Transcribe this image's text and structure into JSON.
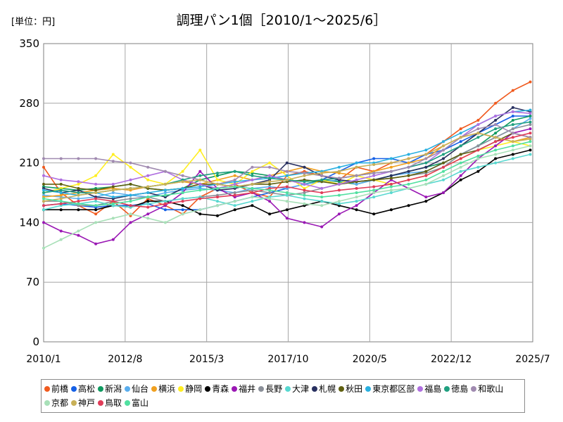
{
  "unit_label": "[単位：円]",
  "chart_data": {
    "type": "line",
    "title": "調理パン1個［2010/1～2025/6］",
    "xlabel": "",
    "ylabel": "",
    "ylim": [
      0,
      350
    ],
    "yticks": [
      "0",
      "70",
      "140",
      "210",
      "280",
      "350"
    ],
    "xticks": [
      "2010/1",
      "2012/8",
      "2015/3",
      "2017/10",
      "2020/5",
      "2022/12",
      "2025/7"
    ],
    "grid": true,
    "legend_position": "bottom",
    "series": [
      {
        "name": "前橋",
        "color": "#f05a1e",
        "values": [
          205,
          175,
          160,
          150,
          165,
          148,
          168,
          160,
          150,
          170,
          180,
          185,
          175,
          170,
          195,
          200,
          195,
          190,
          205,
          200,
          210,
          215,
          220,
          235,
          250,
          260,
          280,
          295,
          305
        ]
      },
      {
        "name": "高松",
        "color": "#1560e6",
        "values": [
          160,
          162,
          160,
          158,
          160,
          160,
          162,
          155,
          155,
          155,
          160,
          165,
          170,
          175,
          180,
          185,
          190,
          200,
          210,
          215,
          215,
          210,
          220,
          225,
          235,
          245,
          255,
          265,
          265
        ]
      },
      {
        "name": "新潟",
        "color": "#0f9a60",
        "values": [
          182,
          180,
          178,
          180,
          182,
          185,
          180,
          178,
          180,
          190,
          195,
          200,
          198,
          195,
          190,
          185,
          190,
          188,
          185,
          190,
          195,
          200,
          205,
          210,
          220,
          230,
          245,
          260,
          265
        ]
      },
      {
        "name": "仙台",
        "color": "#5aaeee",
        "values": [
          172,
          170,
          168,
          170,
          175,
          172,
          170,
          175,
          178,
          180,
          178,
          175,
          180,
          182,
          180,
          185,
          188,
          190,
          185,
          190,
          195,
          198,
          200,
          210,
          220,
          230,
          240,
          250,
          262
        ]
      },
      {
        "name": "横浜",
        "color": "#f0a020",
        "values": [
          170,
          172,
          175,
          178,
          180,
          178,
          182,
          185,
          188,
          185,
          190,
          195,
          190,
          195,
          200,
          205,
          200,
          198,
          195,
          200,
          205,
          210,
          215,
          230,
          240,
          245,
          240,
          235,
          240
        ]
      },
      {
        "name": "静岡",
        "color": "#ffee22",
        "values": [
          175,
          180,
          185,
          195,
          220,
          205,
          190,
          185,
          200,
          225,
          190,
          185,
          200,
          210,
          195,
          180,
          190,
          185,
          195,
          190,
          185,
          190,
          195,
          205,
          215,
          225,
          230,
          235,
          230
        ]
      },
      {
        "name": "青森",
        "color": "#000000",
        "values": [
          155,
          155,
          155,
          155,
          160,
          158,
          165,
          165,
          160,
          150,
          148,
          155,
          160,
          150,
          155,
          160,
          165,
          160,
          155,
          150,
          155,
          160,
          165,
          175,
          190,
          200,
          215,
          220,
          225
        ]
      },
      {
        "name": "福井",
        "color": "#9a18b4",
        "values": [
          140,
          130,
          125,
          115,
          120,
          140,
          150,
          160,
          175,
          200,
          180,
          170,
          175,
          165,
          145,
          140,
          135,
          150,
          160,
          175,
          190,
          180,
          170,
          175,
          195,
          215,
          230,
          245,
          250
        ]
      },
      {
        "name": "長野",
        "color": "#8a8f98",
        "values": [
          165,
          165,
          160,
          160,
          165,
          168,
          170,
          165,
          168,
          170,
          172,
          175,
          178,
          175,
          172,
          175,
          180,
          185,
          188,
          190,
          192,
          195,
          198,
          205,
          220,
          230,
          240,
          250,
          255
        ]
      },
      {
        "name": "大津",
        "color": "#58d8d0",
        "values": [
          155,
          160,
          162,
          165,
          160,
          158,
          162,
          165,
          168,
          170,
          165,
          160,
          165,
          170,
          172,
          168,
          165,
          162,
          165,
          170,
          175,
          180,
          185,
          190,
          200,
          205,
          210,
          215,
          220
        ]
      },
      {
        "name": "札幌",
        "color": "#283060",
        "values": [
          180,
          175,
          178,
          170,
          168,
          172,
          175,
          170,
          180,
          185,
          178,
          180,
          185,
          190,
          210,
          205,
          195,
          190,
          188,
          190,
          195,
          200,
          205,
          215,
          230,
          245,
          260,
          275,
          270
        ]
      },
      {
        "name": "秋田",
        "color": "#606010",
        "values": [
          185,
          185,
          180,
          178,
          182,
          185,
          180,
          178,
          180,
          185,
          185,
          182,
          185,
          185,
          188,
          190,
          188,
          185,
          188,
          190,
          192,
          195,
          200,
          210,
          220,
          225,
          235,
          245,
          240
        ]
      },
      {
        "name": "東京都区部",
        "color": "#2ab0e0",
        "values": [
          178,
          175,
          172,
          175,
          170,
          172,
          175,
          178,
          180,
          182,
          185,
          188,
          190,
          192,
          195,
          198,
          200,
          205,
          210,
          210,
          215,
          220,
          225,
          235,
          245,
          255,
          265,
          270,
          272
        ]
      },
      {
        "name": "福島",
        "color": "#b070e0",
        "values": [
          195,
          190,
          188,
          185,
          185,
          190,
          195,
          200,
          190,
          185,
          180,
          185,
          190,
          195,
          190,
          185,
          180,
          185,
          190,
          195,
          200,
          205,
          210,
          225,
          240,
          255,
          265,
          270,
          268
        ]
      },
      {
        "name": "徳島",
        "color": "#20a080",
        "values": [
          175,
          178,
          175,
          175,
          178,
          180,
          182,
          185,
          190,
          195,
          198,
          200,
          195,
          192,
          190,
          188,
          190,
          192,
          195,
          198,
          200,
          205,
          210,
          220,
          230,
          240,
          250,
          255,
          258
        ]
      },
      {
        "name": "和歌山",
        "color": "#a08ab0",
        "values": [
          215,
          215,
          215,
          215,
          212,
          210,
          205,
          200,
          195,
          190,
          185,
          190,
          205,
          205,
          200,
          198,
          195,
          192,
          195,
          198,
          200,
          205,
          215,
          225,
          240,
          250,
          255,
          245,
          240
        ]
      },
      {
        "name": "京都",
        "color": "#a8e0b8",
        "values": [
          110,
          120,
          130,
          140,
          145,
          150,
          145,
          140,
          150,
          155,
          160,
          165,
          170,
          168,
          165,
          162,
          160,
          165,
          170,
          175,
          178,
          180,
          185,
          195,
          205,
          215,
          220,
          225,
          230
        ]
      },
      {
        "name": "神戸",
        "color": "#c8b058",
        "values": [
          165,
          168,
          172,
          175,
          178,
          180,
          182,
          185,
          188,
          190,
          185,
          182,
          185,
          188,
          190,
          195,
          198,
          200,
          205,
          208,
          210,
          215,
          220,
          230,
          240,
          245,
          240,
          235,
          238
        ]
      },
      {
        "name": "鳥取",
        "color": "#e03c58",
        "values": [
          160,
          162,
          165,
          168,
          165,
          160,
          158,
          162,
          165,
          168,
          170,
          172,
          175,
          180,
          182,
          178,
          175,
          178,
          180,
          182,
          185,
          190,
          195,
          205,
          215,
          225,
          235,
          240,
          245
        ]
      },
      {
        "name": "富山",
        "color": "#50e0a0",
        "values": [
          168,
          165,
          162,
          160,
          162,
          165,
          170,
          172,
          175,
          178,
          180,
          182,
          180,
          178,
          175,
          172,
          170,
          172,
          175,
          178,
          182,
          185,
          190,
          200,
          210,
          218,
          225,
          230,
          235
        ]
      }
    ]
  }
}
